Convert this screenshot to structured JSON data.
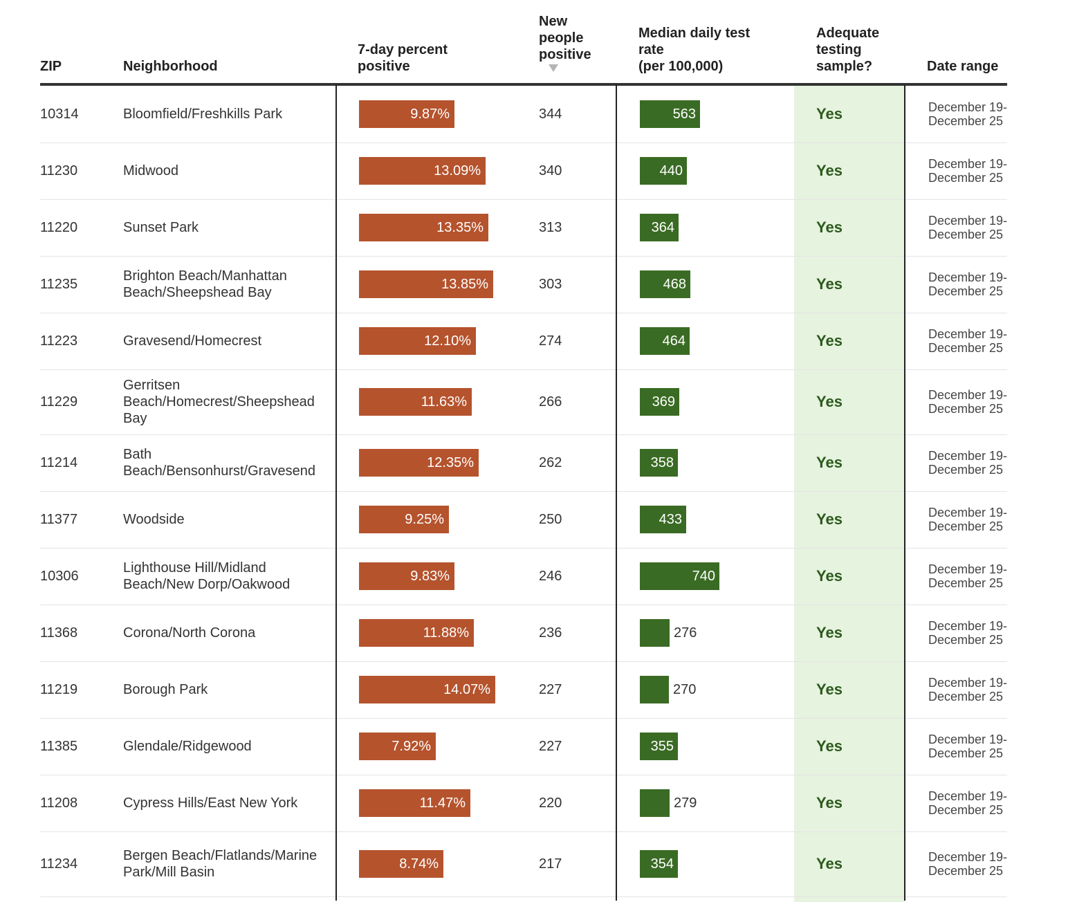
{
  "colors": {
    "positive_bar": "#b5532d",
    "test_rate_bar": "#3a6b24",
    "yes_column_bg": "#e6f3df",
    "yes_text": "#2c5a1d",
    "sort_arrow": "#b5b5b5"
  },
  "headers": {
    "zip": "ZIP",
    "neighborhood": "Neighborhood",
    "pct_line1": "7-day percent",
    "pct_line2": "positive",
    "new_line1": "New",
    "new_line2": "people",
    "new_line3": "positive",
    "rate_line1": "Median daily test",
    "rate_line2": "rate",
    "rate_line3": "(per 100,000)",
    "adequate_line1": "Adequate",
    "adequate_line2": "testing",
    "adequate_line3": "sample?",
    "date": "Date range",
    "sort_icon": "sort-descending-icon"
  },
  "rows": [
    {
      "zip": "10314",
      "neighborhood": "Bloomfield/Freshkills Park",
      "pct": "9.87%",
      "pct_value": 9.87,
      "new_positive": "344",
      "rate": "563",
      "rate_value": 563,
      "adequate": "Yes",
      "date_range": "December 19-December 25"
    },
    {
      "zip": "11230",
      "neighborhood": "Midwood",
      "pct": "13.09%",
      "pct_value": 13.09,
      "new_positive": "340",
      "rate": "440",
      "rate_value": 440,
      "adequate": "Yes",
      "date_range": "December 19-December 25"
    },
    {
      "zip": "11220",
      "neighborhood": "Sunset Park",
      "pct": "13.35%",
      "pct_value": 13.35,
      "new_positive": "313",
      "rate": "364",
      "rate_value": 364,
      "adequate": "Yes",
      "date_range": "December 19-December 25"
    },
    {
      "zip": "11235",
      "neighborhood": "Brighton Beach/Manhattan Beach/Sheepshead Bay",
      "pct": "13.85%",
      "pct_value": 13.85,
      "new_positive": "303",
      "rate": "468",
      "rate_value": 468,
      "adequate": "Yes",
      "date_range": "December 19-December 25"
    },
    {
      "zip": "11223",
      "neighborhood": "Gravesend/Homecrest",
      "pct": "12.10%",
      "pct_value": 12.1,
      "new_positive": "274",
      "rate": "464",
      "rate_value": 464,
      "adequate": "Yes",
      "date_range": "December 19-December 25"
    },
    {
      "zip": "11229",
      "neighborhood": "Gerritsen Beach/Homecrest/Sheepshead Bay",
      "pct": "11.63%",
      "pct_value": 11.63,
      "new_positive": "266",
      "rate": "369",
      "rate_value": 369,
      "adequate": "Yes",
      "date_range": "December 19-December 25"
    },
    {
      "zip": "11214",
      "neighborhood": "Bath Beach/Bensonhurst/Gravesend",
      "pct": "12.35%",
      "pct_value": 12.35,
      "new_positive": "262",
      "rate": "358",
      "rate_value": 358,
      "adequate": "Yes",
      "date_range": "December 19-December 25"
    },
    {
      "zip": "11377",
      "neighborhood": "Woodside",
      "pct": "9.25%",
      "pct_value": 9.25,
      "new_positive": "250",
      "rate": "433",
      "rate_value": 433,
      "adequate": "Yes",
      "date_range": "December 19-December 25"
    },
    {
      "zip": "10306",
      "neighborhood": "Lighthouse Hill/Midland Beach/New Dorp/Oakwood",
      "pct": "9.83%",
      "pct_value": 9.83,
      "new_positive": "246",
      "rate": "740",
      "rate_value": 740,
      "adequate": "Yes",
      "date_range": "December 19-December 25"
    },
    {
      "zip": "11368",
      "neighborhood": "Corona/North Corona",
      "pct": "11.88%",
      "pct_value": 11.88,
      "new_positive": "236",
      "rate": "276",
      "rate_value": 276,
      "adequate": "Yes",
      "date_range": "December 19-December 25"
    },
    {
      "zip": "11219",
      "neighborhood": "Borough Park",
      "pct": "14.07%",
      "pct_value": 14.07,
      "new_positive": "227",
      "rate": "270",
      "rate_value": 270,
      "adequate": "Yes",
      "date_range": "December 19-December 25"
    },
    {
      "zip": "11385",
      "neighborhood": "Glendale/Ridgewood",
      "pct": "7.92%",
      "pct_value": 7.92,
      "new_positive": "227",
      "rate": "355",
      "rate_value": 355,
      "adequate": "Yes",
      "date_range": "December 19-December 25"
    },
    {
      "zip": "11208",
      "neighborhood": "Cypress Hills/East New York",
      "pct": "11.47%",
      "pct_value": 11.47,
      "new_positive": "220",
      "rate": "279",
      "rate_value": 279,
      "adequate": "Yes",
      "date_range": "December 19-December 25"
    },
    {
      "zip": "11234",
      "neighborhood": "Bergen Beach/Flatlands/Marine Park/Mill Basin",
      "pct": "8.74%",
      "pct_value": 8.74,
      "new_positive": "217",
      "rate": "354",
      "rate_value": 354,
      "adequate": "Yes",
      "date_range": "December 19-December 25"
    }
  ]
}
